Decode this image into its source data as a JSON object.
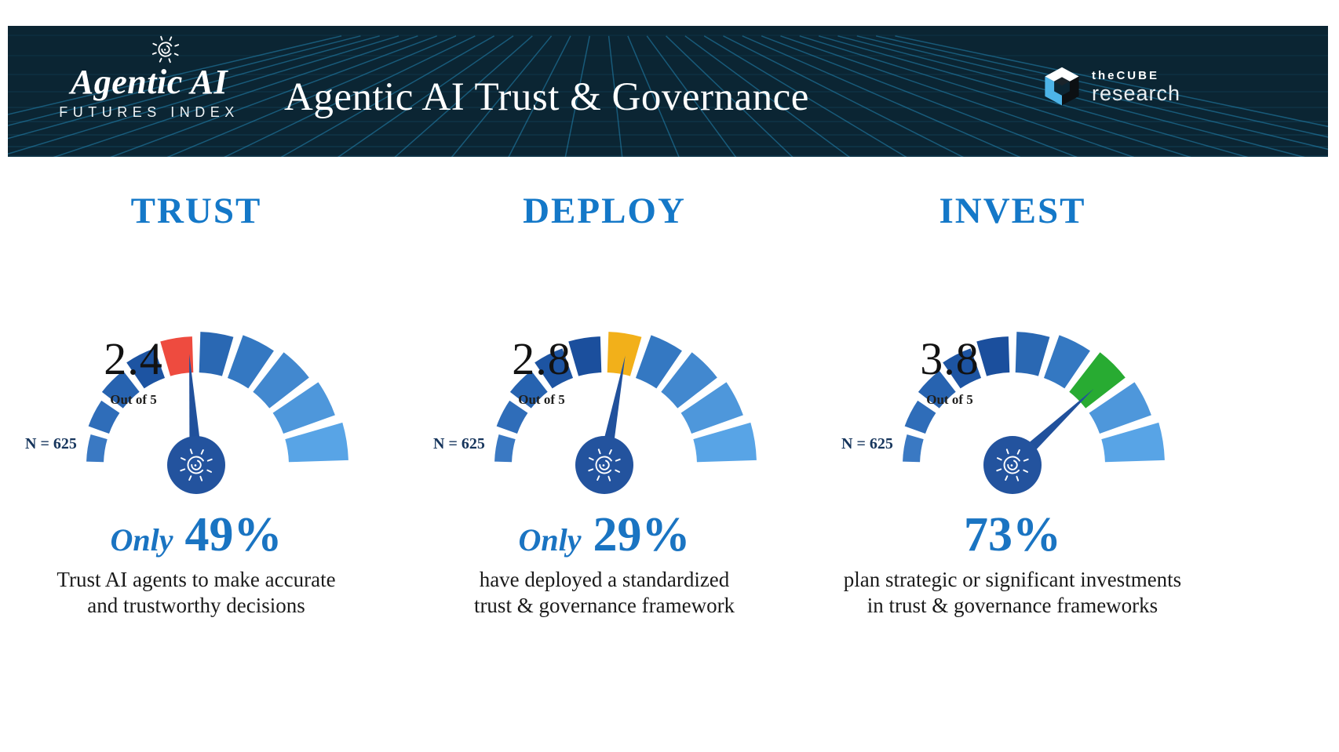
{
  "header": {
    "background": "#0b2533",
    "grid_line_color": "#2aa3da",
    "logo": {
      "title": "Agentic AI",
      "subtitle": "FUTURES INDEX",
      "icon": "sun-spiral"
    },
    "title": "Agentic AI Trust & Governance",
    "brand": {
      "name_top": "theCUBE",
      "name_bottom": "research",
      "icon": "isometric-cube",
      "cube_blue": "#4db4e8"
    }
  },
  "colors": {
    "segment_ramp": [
      "#3a79c3",
      "#2f6db9",
      "#2763b0",
      "#1d54a2",
      "#1b4f9d",
      "#2a68b3",
      "#3478c2",
      "#4288cf",
      "#4e97db",
      "#58a4e6"
    ],
    "needle": "#21519c",
    "hub": "#23539e",
    "title_blue": "#1478c8",
    "stat_blue": "#1a74c2",
    "text_dark": "#1b1b1b",
    "n_label_color": "#16355c",
    "highlight_red": "#ee4b3f",
    "highlight_yellow": "#f2b01a",
    "highlight_green": "#28ab32"
  },
  "gauges": [
    {
      "title": "TRUST",
      "value": 2.4,
      "max": 5,
      "value_label": "2.4",
      "out_of_label": "Out of 5",
      "n_label": "N = 625",
      "segments": 10,
      "highlight_index": 4,
      "highlight_color": "#ee4b3f",
      "stat_prefix": "Only",
      "stat_value": "49%",
      "desc_line1": "Trust AI agents to make accurate",
      "desc_line2": "and trustworthy decisions"
    },
    {
      "title": "DEPLOY",
      "value": 2.8,
      "max": 5,
      "value_label": "2.8",
      "out_of_label": "Out of 5",
      "n_label": "N = 625",
      "segments": 10,
      "highlight_index": 5,
      "highlight_color": "#f2b01a",
      "stat_prefix": "Only",
      "stat_value": "29%",
      "desc_line1": "have deployed a standardized",
      "desc_line2": "trust & governance framework"
    },
    {
      "title": "INVEST",
      "value": 3.8,
      "max": 5,
      "value_label": "3.8",
      "out_of_label": "Out of 5",
      "n_label": "N = 625",
      "segments": 10,
      "highlight_index": 7,
      "highlight_color": "#28ab32",
      "stat_prefix": "",
      "stat_value": "73%",
      "desc_line1": "plan strategic or significant investments",
      "desc_line2": "in trust & governance frameworks"
    }
  ],
  "chart_data": [
    {
      "type": "gauge",
      "title": "TRUST",
      "value": 2.4,
      "scale_min": 0,
      "scale_max": 5,
      "segments": 10,
      "highlighted_segment": 5,
      "highlight_color": "#ee4b3f",
      "sample_size": "N = 625",
      "annotation": "Only 49% Trust AI agents to make accurate and trustworthy decisions"
    },
    {
      "type": "gauge",
      "title": "DEPLOY",
      "value": 2.8,
      "scale_min": 0,
      "scale_max": 5,
      "segments": 10,
      "highlighted_segment": 6,
      "highlight_color": "#f2b01a",
      "sample_size": "N = 625",
      "annotation": "Only 29% have deployed a standardized trust & governance framework"
    },
    {
      "type": "gauge",
      "title": "INVEST",
      "value": 3.8,
      "scale_min": 0,
      "scale_max": 5,
      "segments": 10,
      "highlighted_segment": 8,
      "highlight_color": "#28ab32",
      "sample_size": "N = 625",
      "annotation": "73% plan strategic or significant investments in trust & governance frameworks"
    }
  ]
}
